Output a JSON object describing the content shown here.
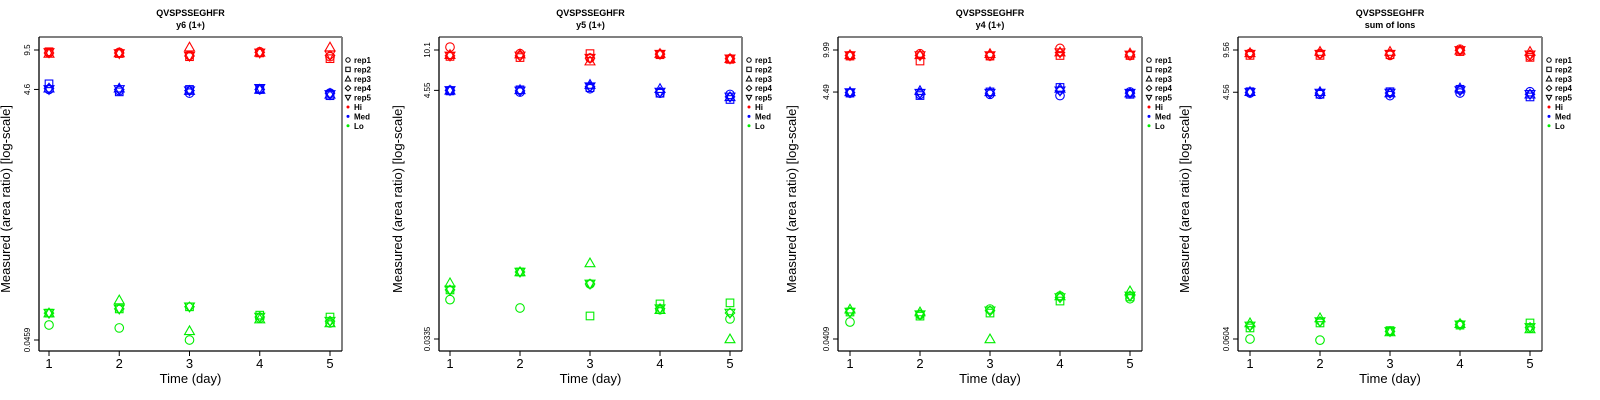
{
  "colors": {
    "Hi": "#ff0000",
    "Med": "#0000ff",
    "Lo": "#00ee00",
    "axis": "#000000",
    "frame_far": "#808080"
  },
  "legend": {
    "reps": [
      {
        "label": "rep1",
        "shape": "circle"
      },
      {
        "label": "rep2",
        "shape": "square"
      },
      {
        "label": "rep3",
        "shape": "triangle-up"
      },
      {
        "label": "rep4",
        "shape": "diamond"
      },
      {
        "label": "rep5",
        "shape": "triangle-down"
      }
    ],
    "groups": [
      {
        "label": "Hi",
        "color": "#ff0000"
      },
      {
        "label": "Med",
        "color": "#0000ff"
      },
      {
        "label": "Lo",
        "color": "#00ee00"
      }
    ]
  },
  "chart_data": [
    {
      "type": "scatter",
      "title": "QVSPSSEGHFR",
      "subtitle": "y6 (1+)",
      "xlabel": "Time (day)",
      "ylabel": "Measured (area ratio) [log-scale]",
      "yscale": "log",
      "x_ticks": [
        "1",
        "2",
        "3",
        "4",
        "5"
      ],
      "y_ticks": [
        "9.5",
        "4.6",
        "0.0459"
      ],
      "y_tick_values": [
        9.5,
        4.6,
        0.0459
      ],
      "x": [
        1,
        2,
        3,
        4,
        5
      ],
      "series": [
        {
          "group": "Hi",
          "rep": "rep1",
          "values": [
            9.0,
            9.1,
            8.6,
            9.2,
            8.4
          ]
        },
        {
          "group": "Hi",
          "rep": "rep2",
          "values": [
            9.2,
            8.9,
            8.4,
            9.0,
            8.1
          ]
        },
        {
          "group": "Hi",
          "rep": "rep3",
          "values": [
            8.9,
            9.0,
            10.0,
            9.1,
            10.0
          ]
        },
        {
          "group": "Hi",
          "rep": "rep4",
          "values": [
            9.0,
            9.0,
            8.5,
            9.1,
            8.6
          ]
        },
        {
          "group": "Hi",
          "rep": "rep5",
          "values": [
            9.1,
            8.9,
            8.5,
            9.0,
            8.7
          ]
        },
        {
          "group": "Med",
          "rep": "rep1",
          "values": [
            4.6,
            4.5,
            4.3,
            4.6,
            4.3
          ]
        },
        {
          "group": "Med",
          "rep": "rep2",
          "values": [
            5.1,
            4.4,
            4.6,
            4.6,
            4.1
          ]
        },
        {
          "group": "Med",
          "rep": "rep3",
          "values": [
            4.7,
            4.7,
            4.5,
            4.6,
            4.2
          ]
        },
        {
          "group": "Med",
          "rep": "rep4",
          "values": [
            4.7,
            4.6,
            4.5,
            4.6,
            4.3
          ]
        },
        {
          "group": "Med",
          "rep": "rep5",
          "values": [
            4.6,
            4.6,
            4.5,
            4.7,
            4.2
          ]
        },
        {
          "group": "Lo",
          "rep": "rep1",
          "values": [
            0.0605,
            0.0573,
            0.0459,
            0.0687,
            0.0628
          ]
        },
        {
          "group": "Lo",
          "rep": "rep2",
          "values": [
            0.0752,
            0.0813,
            0.0845,
            0.0725,
            0.07
          ]
        },
        {
          "group": "Lo",
          "rep": "rep3",
          "values": [
            0.0752,
            0.0956,
            0.0543,
            0.0674,
            0.0628
          ]
        },
        {
          "group": "Lo",
          "rep": "rep4",
          "values": [
            0.0752,
            0.0813,
            0.0845,
            0.07,
            0.065
          ]
        },
        {
          "group": "Lo",
          "rep": "rep5",
          "values": [
            0.0752,
            0.0813,
            0.0845,
            0.07,
            0.065
          ]
        }
      ]
    },
    {
      "type": "scatter",
      "title": "QVSPSSEGHFR",
      "subtitle": "y5 (1+)",
      "xlabel": "Time (day)",
      "ylabel": "Measured (area ratio) [log-scale]",
      "yscale": "log",
      "x_ticks": [
        "1",
        "2",
        "3",
        "4",
        "5"
      ],
      "y_ticks": [
        "10.1",
        "4.55",
        "0.0335"
      ],
      "y_tick_values": [
        10.1,
        4.55,
        0.0335
      ],
      "x": [
        1,
        2,
        3,
        4,
        5
      ],
      "series": [
        {
          "group": "Hi",
          "rep": "rep1",
          "values": [
            10.7,
            9.4,
            8.6,
            9.3,
            8.5
          ]
        },
        {
          "group": "Hi",
          "rep": "rep2",
          "values": [
            8.9,
            8.7,
            9.4,
            9.2,
            8.4
          ]
        },
        {
          "group": "Hi",
          "rep": "rep3",
          "values": [
            9.2,
            9.3,
            8.1,
            9.4,
            8.5
          ]
        },
        {
          "group": "Hi",
          "rep": "rep4",
          "values": [
            9.0,
            9.0,
            8.6,
            9.3,
            8.5
          ]
        },
        {
          "group": "Hi",
          "rep": "rep5",
          "values": [
            9.0,
            9.0,
            8.6,
            9.3,
            8.5
          ]
        },
        {
          "group": "Med",
          "rep": "rep1",
          "values": [
            4.55,
            4.4,
            4.7,
            4.3,
            4.2
          ]
        },
        {
          "group": "Med",
          "rep": "rep2",
          "values": [
            4.5,
            4.6,
            4.8,
            4.3,
            3.8
          ]
        },
        {
          "group": "Med",
          "rep": "rep3",
          "values": [
            4.55,
            4.6,
            5.1,
            4.7,
            4.0
          ]
        },
        {
          "group": "Med",
          "rep": "rep4",
          "values": [
            4.55,
            4.5,
            4.9,
            4.4,
            4.0
          ]
        },
        {
          "group": "Med",
          "rep": "rep5",
          "values": [
            4.55,
            4.5,
            4.9,
            4.4,
            4.0
          ]
        },
        {
          "group": "Lo",
          "rep": "rep1",
          "values": [
            0.0729,
            0.0618,
            0.0994,
            0.0597,
            0.0498
          ]
        },
        {
          "group": "Lo",
          "rep": "rep2",
          "values": [
            0.0883,
            0.1259,
            0.0528,
            0.067,
            0.0684
          ]
        },
        {
          "group": "Lo",
          "rep": "rep3",
          "values": [
            0.1014,
            0.1259,
            0.1503,
            0.0597,
            0.0335
          ]
        },
        {
          "group": "Lo",
          "rep": "rep4",
          "values": [
            0.0883,
            0.1259,
            0.0994,
            0.061,
            0.056
          ]
        },
        {
          "group": "Lo",
          "rep": "rep5",
          "values": [
            0.0883,
            0.1259,
            0.0994,
            0.061,
            0.056
          ]
        }
      ]
    },
    {
      "type": "scatter",
      "title": "QVSPSSEGHFR",
      "subtitle": "y4 (1+)",
      "xlabel": "Time (day)",
      "ylabel": "Measured (area ratio) [log-scale]",
      "yscale": "log",
      "x_ticks": [
        "1",
        "2",
        "3",
        "4",
        "5"
      ],
      "y_ticks": [
        "9.99",
        "4.49",
        "0.0409"
      ],
      "y_tick_values": [
        9.99,
        4.49,
        0.0409
      ],
      "x": [
        1,
        2,
        3,
        4,
        5
      ],
      "series": [
        {
          "group": "Hi",
          "rep": "rep1",
          "values": [
            9.0,
            9.3,
            8.9,
            10.3,
            9.0
          ]
        },
        {
          "group": "Hi",
          "rep": "rep2",
          "values": [
            8.9,
            8.1,
            8.9,
            9.0,
            9.0
          ]
        },
        {
          "group": "Hi",
          "rep": "rep3",
          "values": [
            9.1,
            9.1,
            9.3,
            9.6,
            9.4
          ]
        },
        {
          "group": "Hi",
          "rep": "rep4",
          "values": [
            9.0,
            9.0,
            9.0,
            9.5,
            9.1
          ]
        },
        {
          "group": "Hi",
          "rep": "rep5",
          "values": [
            9.0,
            9.0,
            9.0,
            9.5,
            9.1
          ]
        },
        {
          "group": "Med",
          "rep": "rep1",
          "values": [
            4.4,
            4.3,
            4.3,
            4.2,
            4.5
          ]
        },
        {
          "group": "Med",
          "rep": "rep2",
          "values": [
            4.4,
            4.2,
            4.5,
            4.9,
            4.3
          ]
        },
        {
          "group": "Med",
          "rep": "rep3",
          "values": [
            4.5,
            4.6,
            4.5,
            4.8,
            4.4
          ]
        },
        {
          "group": "Med",
          "rep": "rep4",
          "values": [
            4.45,
            4.4,
            4.4,
            4.6,
            4.4
          ]
        },
        {
          "group": "Med",
          "rep": "rep5",
          "values": [
            4.45,
            4.4,
            4.4,
            4.6,
            4.4
          ]
        },
        {
          "group": "Lo",
          "rep": "rep1",
          "values": [
            0.0565,
            0.065,
            0.0723,
            0.0927,
            0.088
          ]
        },
        {
          "group": "Lo",
          "rep": "rep2",
          "values": [
            0.0683,
            0.0632,
            0.067,
            0.0842,
            0.091
          ]
        },
        {
          "group": "Lo",
          "rep": "rep3",
          "values": [
            0.072,
            0.0683,
            0.0409,
            0.0927,
            0.1019
          ]
        },
        {
          "group": "Lo",
          "rep": "rep4",
          "values": [
            0.0683,
            0.065,
            0.07,
            0.09,
            0.093
          ]
        },
        {
          "group": "Lo",
          "rep": "rep5",
          "values": [
            0.0683,
            0.065,
            0.07,
            0.09,
            0.093
          ]
        }
      ]
    },
    {
      "type": "scatter",
      "title": "QVSPSSEGHFR",
      "subtitle": "sum of Ions",
      "xlabel": "Time (day)",
      "ylabel": "Measured (area ratio) [log-scale]",
      "yscale": "log",
      "x_ticks": [
        "1",
        "2",
        "3",
        "4",
        "5"
      ],
      "y_ticks": [
        "9.56",
        "4.56",
        "0.0604"
      ],
      "y_tick_values": [
        9.56,
        4.56,
        0.0604
      ],
      "x": [
        1,
        2,
        3,
        4,
        5
      ],
      "series": [
        {
          "group": "Hi",
          "rep": "rep1",
          "values": [
            9.0,
            9.0,
            8.7,
            9.7,
            8.6
          ]
        },
        {
          "group": "Hi",
          "rep": "rep2",
          "values": [
            8.7,
            8.7,
            8.8,
            9.3,
            8.4
          ]
        },
        {
          "group": "Hi",
          "rep": "rep3",
          "values": [
            9.1,
            9.3,
            9.3,
            9.5,
            9.3
          ]
        },
        {
          "group": "Hi",
          "rep": "rep4",
          "values": [
            8.9,
            8.9,
            8.9,
            9.5,
            8.8
          ]
        },
        {
          "group": "Hi",
          "rep": "rep5",
          "values": [
            8.9,
            8.9,
            8.9,
            9.5,
            8.8
          ]
        },
        {
          "group": "Med",
          "rep": "rep1",
          "values": [
            4.5,
            4.4,
            4.3,
            4.5,
            4.6
          ]
        },
        {
          "group": "Med",
          "rep": "rep2",
          "values": [
            4.6,
            4.4,
            4.6,
            4.8,
            4.2
          ]
        },
        {
          "group": "Med",
          "rep": "rep3",
          "values": [
            4.6,
            4.6,
            4.5,
            4.9,
            4.4
          ]
        },
        {
          "group": "Med",
          "rep": "rep4",
          "values": [
            4.55,
            4.5,
            4.5,
            4.7,
            4.4
          ]
        },
        {
          "group": "Med",
          "rep": "rep5",
          "values": [
            4.55,
            4.5,
            4.5,
            4.7,
            4.4
          ]
        },
        {
          "group": "Lo",
          "rep": "rep1",
          "values": [
            0.0604,
            0.0592,
            0.069,
            0.078,
            0.073
          ]
        },
        {
          "group": "Lo",
          "rep": "rep2",
          "values": [
            0.0733,
            0.08,
            0.07,
            0.077,
            0.08
          ]
        },
        {
          "group": "Lo",
          "rep": "rep3",
          "values": [
            0.08,
            0.0873,
            0.0683,
            0.079,
            0.072
          ]
        },
        {
          "group": "Lo",
          "rep": "rep4",
          "values": [
            0.076,
            0.082,
            0.069,
            0.0775,
            0.074
          ]
        },
        {
          "group": "Lo",
          "rep": "rep5",
          "values": [
            0.076,
            0.082,
            0.069,
            0.0775,
            0.074
          ]
        }
      ]
    }
  ]
}
